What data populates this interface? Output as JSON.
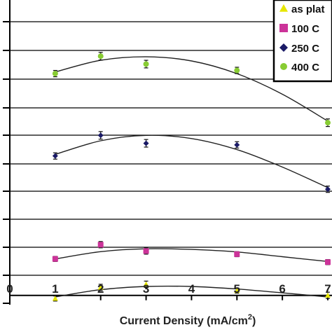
{
  "chart_data": {
    "type": "scatter",
    "title": "",
    "xlabel": "Current Density (mA/cm",
    "xlabel_superscript": "2",
    "xlabel_close": ")",
    "ylabel": "",
    "xlim": [
      0,
      7
    ],
    "ylim": [
      -0.25,
      9.5
    ],
    "x_ticks": [
      "0",
      "1",
      "2",
      "3",
      "4",
      "5",
      "6",
      "7"
    ],
    "grid": true,
    "legend_position": "top-right",
    "series": [
      {
        "name": "as plat",
        "marker": "triangle",
        "color": "#e6e600",
        "x": [
          1,
          2,
          3,
          5,
          7
        ],
        "y": [
          -0.1,
          0.25,
          0.35,
          0.15,
          0.0
        ],
        "err": [
          0.08,
          0.1,
          0.1,
          0.08,
          0.1
        ],
        "fit": [
          [
            1,
            -0.05
          ],
          [
            2,
            0.18
          ],
          [
            3,
            0.28
          ],
          [
            4,
            0.28
          ],
          [
            5,
            0.2
          ],
          [
            6,
            0.08
          ],
          [
            7,
            -0.05
          ]
        ]
      },
      {
        "name": "100 C",
        "marker": "square",
        "color": "#cc3399",
        "x": [
          1,
          2,
          3,
          5,
          7
        ],
        "y": [
          1.15,
          1.6,
          1.4,
          1.3,
          1.05
        ],
        "err": [
          0.08,
          0.1,
          0.1,
          0.08,
          0.08
        ],
        "fit": [
          [
            1,
            1.15
          ],
          [
            2,
            1.38
          ],
          [
            3,
            1.47
          ],
          [
            4,
            1.45
          ],
          [
            5,
            1.37
          ],
          [
            6,
            1.22
          ],
          [
            7,
            1.07
          ]
        ]
      },
      {
        "name": "250 C",
        "marker": "diamond",
        "color": "#1a1a66",
        "x": [
          1,
          2,
          3,
          5,
          7
        ],
        "y": [
          4.4,
          5.05,
          4.8,
          4.75,
          3.35
        ],
        "err": [
          0.1,
          0.12,
          0.12,
          0.1,
          0.1
        ],
        "fit": [
          [
            1,
            4.45
          ],
          [
            2,
            4.88
          ],
          [
            3,
            5.05
          ],
          [
            4,
            4.95
          ],
          [
            5,
            4.6
          ],
          [
            6,
            4.05
          ],
          [
            7,
            3.4
          ]
        ]
      },
      {
        "name": "400 C",
        "marker": "circle",
        "color": "#88cc33",
        "x": [
          1,
          2,
          3,
          5,
          7
        ],
        "y": [
          7.0,
          7.55,
          7.3,
          7.1,
          5.45
        ],
        "err": [
          0.1,
          0.12,
          0.12,
          0.1,
          0.12
        ],
        "fit": [
          [
            1,
            7.05
          ],
          [
            2,
            7.42
          ],
          [
            3,
            7.53
          ],
          [
            4,
            7.4
          ],
          [
            5,
            7.0
          ],
          [
            6,
            6.35
          ],
          [
            7,
            5.5
          ]
        ]
      }
    ]
  }
}
